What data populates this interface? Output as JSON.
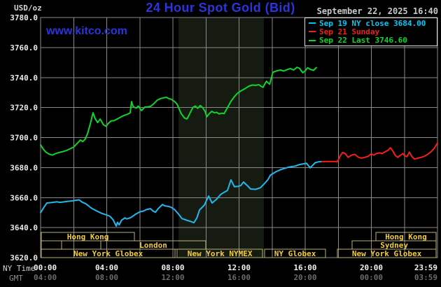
{
  "header": {
    "units_label": "USD/oz",
    "title": "24 Hour Spot Gold (Bid)",
    "datetime": "September 22, 2025 16:40",
    "watermark": "www.kitco.com"
  },
  "legend": {
    "items": [
      {
        "name": "sep19",
        "color": "#00c8f6",
        "label": "Sep 19 NY close 3684.00"
      },
      {
        "name": "sep21",
        "color": "#f51d1d",
        "label": "Sep 21 Sunday"
      },
      {
        "name": "sep22",
        "color": "#0fd42c",
        "label": "Sep 22 Last 3746.60"
      }
    ]
  },
  "axes": {
    "ny_label": "NY Time",
    "gmt_label": "GMT",
    "ny_ticks": [
      "00:00",
      "04:00",
      "08:00",
      "12:00",
      "16:00",
      "20:00",
      "23:59"
    ],
    "gmt_ticks": [
      "04:00",
      "08:00",
      "12:00",
      "16:00",
      "20:00",
      "00:00",
      "03:59"
    ]
  },
  "colors": {
    "background": "#000000",
    "title_blue": "#2b35db",
    "grid": "#8a8a8a",
    "border": "#8a8a8a",
    "band": "#161b11",
    "session_box": "#bdb176",
    "session_text": "#f0cc3e",
    "y_labels": "#eaeaea",
    "ny_tick_text": "#f2f2f2",
    "gmt_tick_text": "#6b6b6b"
  },
  "chart_data": {
    "type": "line",
    "title": "24 Hour Spot Gold (Bid)",
    "ylabel": "USD/oz",
    "ylim": [
      3620,
      3780
    ],
    "xlim_hours": [
      0,
      24
    ],
    "grid": true,
    "legend_position": "top-right",
    "y_ticks": [
      3780,
      3760,
      3740,
      3720,
      3700,
      3680,
      3660,
      3640,
      3620
    ],
    "y_tick_labels": [
      "3780.0",
      "3760.0",
      "3740.0",
      "3720.0",
      "3700.0",
      "3680.0",
      "3660.0",
      "3640.0",
      "3620.0"
    ],
    "x_tick_hours": [
      0,
      4,
      8,
      12,
      16,
      20,
      24
    ],
    "x_gridline_hours": [
      2,
      4,
      6,
      8,
      10,
      12,
      14,
      16,
      18,
      20,
      22
    ],
    "nymex_floor_band_hours": [
      8.34,
      13.5
    ],
    "series": [
      {
        "name": "Sep 19 NY close",
        "color": "#22b8ee",
        "close": 3684.0,
        "points": [
          [
            0,
            3650
          ],
          [
            0.2,
            3653.5
          ],
          [
            0.38,
            3656.4
          ],
          [
            0.6,
            3656.6
          ],
          [
            0.8,
            3656.9
          ],
          [
            1.0,
            3657.2
          ],
          [
            1.15,
            3656.8
          ],
          [
            1.3,
            3657
          ],
          [
            1.6,
            3657.4
          ],
          [
            1.9,
            3657.8
          ],
          [
            2.2,
            3658.3
          ],
          [
            2.33,
            3658.5
          ],
          [
            2.5,
            3657
          ],
          [
            2.71,
            3656
          ],
          [
            2.9,
            3654.5
          ],
          [
            3.0,
            3653.5
          ],
          [
            3.13,
            3652.6
          ],
          [
            3.4,
            3651
          ],
          [
            3.7,
            3649.5
          ],
          [
            3.98,
            3648.5
          ],
          [
            4.2,
            3647.5
          ],
          [
            4.4,
            3645
          ],
          [
            4.57,
            3641
          ],
          [
            4.65,
            3643.5
          ],
          [
            4.75,
            3641.8
          ],
          [
            4.9,
            3645
          ],
          [
            5.1,
            3646.5
          ],
          [
            5.2,
            3645.8
          ],
          [
            5.35,
            3646.2
          ],
          [
            5.5,
            3647
          ],
          [
            5.8,
            3649.3
          ],
          [
            6.0,
            3650.5
          ],
          [
            6.22,
            3651
          ],
          [
            6.4,
            3652
          ],
          [
            6.64,
            3652.6
          ],
          [
            6.8,
            3651
          ],
          [
            6.94,
            3650.2
          ],
          [
            7.1,
            3652.5
          ],
          [
            7.37,
            3655.4
          ],
          [
            7.5,
            3654.5
          ],
          [
            7.7,
            3654.2
          ],
          [
            7.9,
            3653.5
          ],
          [
            8.1,
            3652
          ],
          [
            8.34,
            3649
          ],
          [
            8.55,
            3646
          ],
          [
            8.89,
            3644.7
          ],
          [
            9.1,
            3644
          ],
          [
            9.27,
            3643.3
          ],
          [
            9.45,
            3646.5
          ],
          [
            9.61,
            3651.7
          ],
          [
            9.9,
            3655
          ],
          [
            10.16,
            3661
          ],
          [
            10.37,
            3656.4
          ],
          [
            10.65,
            3659
          ],
          [
            10.88,
            3662
          ],
          [
            11.1,
            3663.5
          ],
          [
            11.3,
            3664.8
          ],
          [
            11.51,
            3671.8
          ],
          [
            11.72,
            3667.2
          ],
          [
            11.95,
            3667.5
          ],
          [
            12.1,
            3668
          ],
          [
            12.27,
            3670.4
          ],
          [
            12.5,
            3668
          ],
          [
            12.7,
            3665.7
          ],
          [
            13.0,
            3665.5
          ],
          [
            13.3,
            3666.6
          ],
          [
            13.55,
            3669.5
          ],
          [
            13.75,
            3672
          ],
          [
            13.9,
            3675
          ],
          [
            14.26,
            3677.4
          ],
          [
            14.56,
            3678.8
          ],
          [
            14.98,
            3680.2
          ],
          [
            15.4,
            3681
          ],
          [
            15.66,
            3682
          ],
          [
            16.08,
            3682.9
          ],
          [
            16.3,
            3679.8
          ],
          [
            16.6,
            3683.2
          ],
          [
            16.8,
            3683.8
          ],
          [
            17.0,
            3684
          ]
        ]
      },
      {
        "name": "Sep 21 Sunday",
        "color": "#f51d1d",
        "points": [
          [
            17.0,
            3684
          ],
          [
            17.95,
            3684
          ],
          [
            18.1,
            3687.5
          ],
          [
            18.25,
            3690
          ],
          [
            18.4,
            3689.5
          ],
          [
            18.6,
            3686.8
          ],
          [
            18.8,
            3688.3
          ],
          [
            19.0,
            3688.8
          ],
          [
            19.2,
            3687
          ],
          [
            19.4,
            3686.3
          ],
          [
            19.6,
            3686.8
          ],
          [
            19.8,
            3687.5
          ],
          [
            20.0,
            3689.2
          ],
          [
            20.15,
            3688.3
          ],
          [
            20.3,
            3689.3
          ],
          [
            20.5,
            3689.8
          ],
          [
            20.65,
            3689.3
          ],
          [
            20.8,
            3690.3
          ],
          [
            21.0,
            3691.5
          ],
          [
            21.15,
            3693.2
          ],
          [
            21.3,
            3691
          ],
          [
            21.45,
            3688
          ],
          [
            21.6,
            3686.8
          ],
          [
            21.75,
            3688.2
          ],
          [
            21.9,
            3689.3
          ],
          [
            22.0,
            3688
          ],
          [
            22.15,
            3687.2
          ],
          [
            22.3,
            3690.3
          ],
          [
            22.45,
            3687.3
          ],
          [
            22.6,
            3685.7
          ],
          [
            22.8,
            3686.2
          ],
          [
            23.0,
            3686.8
          ],
          [
            23.2,
            3687.5
          ],
          [
            23.4,
            3688.8
          ],
          [
            23.6,
            3690.5
          ],
          [
            23.8,
            3692.8
          ],
          [
            23.95,
            3695.5
          ],
          [
            24.0,
            3696.5
          ]
        ]
      },
      {
        "name": "Sep 22 Last",
        "color": "#0fd42c",
        "last": 3746.6,
        "points": [
          [
            0,
            3695
          ],
          [
            0.15,
            3692.5
          ],
          [
            0.3,
            3690.5
          ],
          [
            0.5,
            3689
          ],
          [
            0.72,
            3688.3
          ],
          [
            0.9,
            3689.3
          ],
          [
            1.1,
            3690
          ],
          [
            1.3,
            3690.5
          ],
          [
            1.57,
            3691.4
          ],
          [
            1.8,
            3692.6
          ],
          [
            2.0,
            3693.7
          ],
          [
            2.2,
            3696
          ],
          [
            2.41,
            3698.4
          ],
          [
            2.55,
            3697.3
          ],
          [
            2.7,
            3699
          ],
          [
            2.85,
            3703
          ],
          [
            3.0,
            3709
          ],
          [
            3.17,
            3716.5
          ],
          [
            3.3,
            3712.5
          ],
          [
            3.45,
            3710
          ],
          [
            3.6,
            3712.3
          ],
          [
            3.8,
            3708.5
          ],
          [
            3.95,
            3707.5
          ],
          [
            4.1,
            3709.5
          ],
          [
            4.25,
            3711
          ],
          [
            4.45,
            3711.3
          ],
          [
            4.65,
            3712.5
          ],
          [
            4.85,
            3713.7
          ],
          [
            5.05,
            3714.8
          ],
          [
            5.25,
            3715.5
          ],
          [
            5.42,
            3716.5
          ],
          [
            5.5,
            3724
          ],
          [
            5.6,
            3720.5
          ],
          [
            5.8,
            3719.6
          ],
          [
            5.9,
            3721
          ],
          [
            6.1,
            3718
          ],
          [
            6.3,
            3720.3
          ],
          [
            6.5,
            3720.5
          ],
          [
            6.65,
            3720.8
          ],
          [
            6.85,
            3722.6
          ],
          [
            7.05,
            3724.9
          ],
          [
            7.25,
            3726
          ],
          [
            7.45,
            3726.5
          ],
          [
            7.6,
            3726.8
          ],
          [
            7.75,
            3726
          ],
          [
            7.9,
            3725.5
          ],
          [
            8.1,
            3724
          ],
          [
            8.25,
            3722.3
          ],
          [
            8.5,
            3716
          ],
          [
            8.7,
            3713
          ],
          [
            8.85,
            3712.4
          ],
          [
            9.0,
            3715.5
          ],
          [
            9.2,
            3720
          ],
          [
            9.35,
            3721
          ],
          [
            9.5,
            3719.5
          ],
          [
            9.65,
            3721.3
          ],
          [
            9.8,
            3720
          ],
          [
            9.95,
            3717.3
          ],
          [
            10.05,
            3713.8
          ],
          [
            10.2,
            3716
          ],
          [
            10.35,
            3717.5
          ],
          [
            10.5,
            3716.5
          ],
          [
            10.65,
            3716.8
          ],
          [
            10.8,
            3715.7
          ],
          [
            10.95,
            3716.2
          ],
          [
            11.1,
            3716
          ],
          [
            11.3,
            3720
          ],
          [
            11.5,
            3724
          ],
          [
            11.7,
            3727
          ],
          [
            11.9,
            3729.5
          ],
          [
            12.1,
            3731
          ],
          [
            12.35,
            3732.5
          ],
          [
            12.6,
            3734.3
          ],
          [
            12.8,
            3735
          ],
          [
            13.0,
            3734.8
          ],
          [
            13.2,
            3735.2
          ],
          [
            13.35,
            3734
          ],
          [
            13.45,
            3733.5
          ],
          [
            13.65,
            3737.5
          ],
          [
            13.85,
            3735.5
          ],
          [
            14.05,
            3743.5
          ],
          [
            14.3,
            3744.5
          ],
          [
            14.5,
            3745
          ],
          [
            14.7,
            3744.3
          ],
          [
            14.9,
            3745.2
          ],
          [
            15.1,
            3746
          ],
          [
            15.3,
            3745
          ],
          [
            15.5,
            3746.8
          ],
          [
            15.65,
            3746.2
          ],
          [
            15.85,
            3743.2
          ],
          [
            16.0,
            3744.5
          ],
          [
            16.15,
            3746.5
          ],
          [
            16.3,
            3745.5
          ],
          [
            16.5,
            3744.8
          ],
          [
            16.67,
            3746.6
          ]
        ]
      }
    ],
    "sessions": [
      {
        "row": 0,
        "label": "Hong Kong",
        "start": 0.05,
        "end": 5.67
      },
      {
        "row": 0,
        "label": "Hong Kong",
        "start": 20.27,
        "end": 23.92
      },
      {
        "row": 1,
        "label": "",
        "start": 0.05,
        "end": 1.27
      },
      {
        "row": 1,
        "label": "",
        "start": 1.27,
        "end": 3.64
      },
      {
        "row": 1,
        "label": "London",
        "start": 3.64,
        "end": 9.99
      },
      {
        "row": 1,
        "label": "Sydney",
        "start": 18.84,
        "end": 23.92
      },
      {
        "row": 2,
        "label": "New York Globex",
        "start": 0.05,
        "end": 8.13
      },
      {
        "row": 2,
        "label": "New York NYMEX",
        "start": 8.26,
        "end": 13.42
      },
      {
        "row": 2,
        "label": "NY Globex",
        "start": 13.55,
        "end": 17.23
      },
      {
        "row": 2,
        "label": "New York Globex",
        "start": 17.95,
        "end": 23.92
      }
    ]
  }
}
